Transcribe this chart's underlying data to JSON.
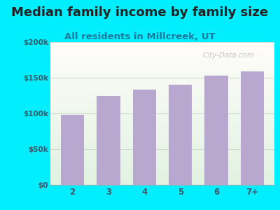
{
  "title": "Median family income by family size",
  "subtitle": "All residents in Millcreek, UT",
  "categories": [
    "2",
    "3",
    "4",
    "5",
    "6",
    "7+"
  ],
  "values": [
    98000,
    125000,
    133000,
    140000,
    153000,
    159000
  ],
  "bar_color": "#b8a8d0",
  "background_outer": "#00eeff",
  "ylim": [
    0,
    200000
  ],
  "yticks": [
    0,
    50000,
    100000,
    150000,
    200000
  ],
  "ytick_labels": [
    "$0",
    "$50k",
    "$100k",
    "$150k",
    "$200k"
  ],
  "title_fontsize": 13,
  "subtitle_fontsize": 9.5,
  "title_color": "#222222",
  "subtitle_color": "#1a7a9a",
  "tick_color": "#3a5a6a",
  "watermark": "City-Data.com",
  "grid_color": "#ccddcc"
}
